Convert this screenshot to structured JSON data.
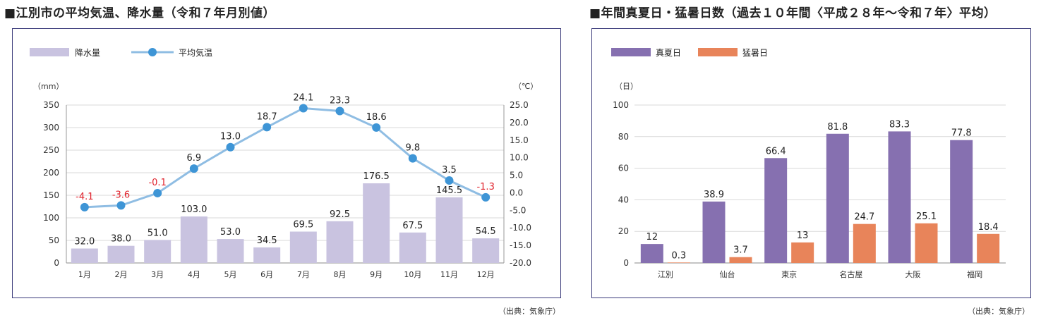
{
  "left": {
    "title": "■江別市の平均気温、降水量（令和７年月別値）",
    "source": "（出典：気象庁）",
    "chart_data": {
      "type": "bar+line",
      "categories": [
        "1月",
        "2月",
        "3月",
        "4月",
        "5月",
        "6月",
        "7月",
        "8月",
        "9月",
        "10月",
        "11月",
        "12月"
      ],
      "series": [
        {
          "name": "降水量",
          "type": "bar",
          "axis": "left",
          "values": [
            32.0,
            38.0,
            51.0,
            103.0,
            53.0,
            34.5,
            69.5,
            92.5,
            176.5,
            67.5,
            145.5,
            54.5
          ],
          "labels": [
            "32.0",
            "38.0",
            "51.0",
            "103.0",
            "53.0",
            "34.5",
            "69.5",
            "92.5",
            "176.5",
            "67.5",
            "145.5",
            "54.5"
          ],
          "color": "#c9c3e0"
        },
        {
          "name": "平均気温",
          "type": "line",
          "axis": "right",
          "values": [
            -4.1,
            -3.6,
            -0.1,
            6.9,
            13.0,
            18.7,
            24.1,
            23.3,
            18.6,
            9.8,
            3.5,
            -1.3
          ],
          "labels": [
            "-4.1",
            "-3.6",
            "-0.1",
            "6.9",
            "13.0",
            "18.7",
            "24.1",
            "23.3",
            "18.6",
            "9.8",
            "3.5",
            "-1.3"
          ],
          "color": "#8fbde3",
          "marker_color": "#3e95d6",
          "negative_label_color": "#e0202a"
        }
      ],
      "ylabel_left": "（mm）",
      "ylabel_right": "（℃）",
      "ylim_left": [
        0,
        350
      ],
      "yticks_left": [
        "0",
        "50",
        "100",
        "150",
        "200",
        "250",
        "300",
        "350"
      ],
      "ylim_right": [
        -20,
        25
      ],
      "yticks_right": [
        "-20.0",
        "-15.0",
        "-10.0",
        "-5.0",
        "0.0",
        "5.0",
        "10.0",
        "15.0",
        "20.0",
        "25.0"
      ],
      "grid": true,
      "legend": "top-left"
    }
  },
  "right": {
    "title": "■年間真夏日・猛暑日数（過去１０年間〈平成２８年～令和７年〉平均）",
    "source": "（出典：気象庁）",
    "chart_data": {
      "type": "bar",
      "categories": [
        "江別",
        "仙台",
        "東京",
        "名古屋",
        "大阪",
        "福岡"
      ],
      "series": [
        {
          "name": "真夏日",
          "values": [
            12,
            38.9,
            66.4,
            81.8,
            83.3,
            77.8
          ],
          "labels": [
            "12",
            "38.9",
            "66.4",
            "81.8",
            "83.3",
            "77.8"
          ],
          "color": "#8670b0"
        },
        {
          "name": "猛暑日",
          "values": [
            0.3,
            3.7,
            13,
            24.7,
            25.1,
            18.4
          ],
          "labels": [
            "0.3",
            "3.7",
            "13",
            "24.7",
            "25.1",
            "18.4"
          ],
          "color": "#e8845a"
        }
      ],
      "ylabel": "（日）",
      "ylim": [
        0,
        100
      ],
      "yticks": [
        "0",
        "20",
        "40",
        "60",
        "80",
        "100"
      ],
      "grid": true,
      "legend": "top-left"
    }
  }
}
